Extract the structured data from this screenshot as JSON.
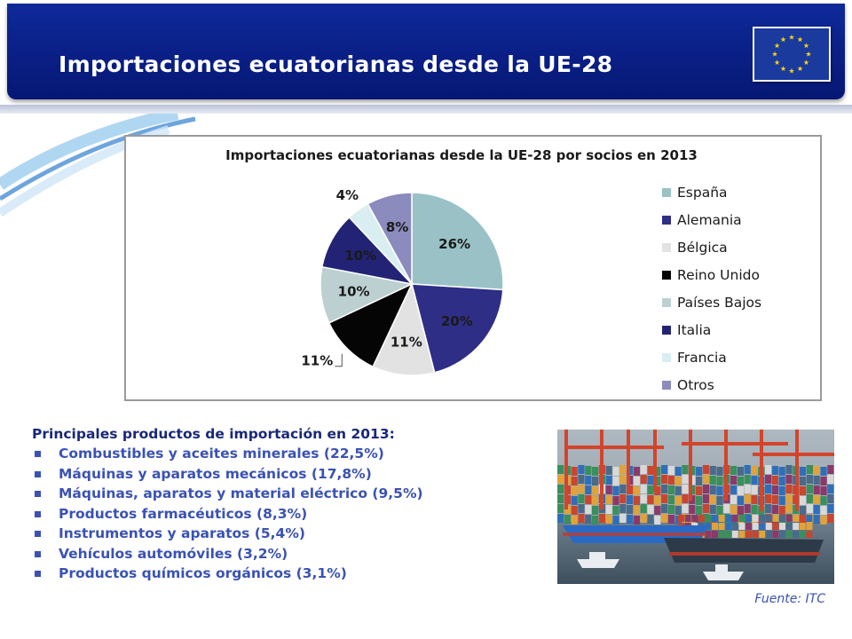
{
  "slide": {
    "title": "Importaciones ecuatorianas desde la UE-28",
    "flag_icon": "eu-flag-icon",
    "colors": {
      "banner": "#0a1f86",
      "accent_text": "#3a52b4",
      "heading_text": "#1a2878"
    }
  },
  "chart_data": {
    "type": "pie",
    "title": "Importaciones ecuatorianas desde la UE-28 por socios en 2013",
    "legend_position": "right",
    "categories": [
      "España",
      "Alemania",
      "Bélgica",
      "Reino Unido",
      "Países Bajos",
      "Italia",
      "Francia",
      "Otros"
    ],
    "values": [
      26,
      20,
      11,
      11,
      10,
      10,
      4,
      8
    ],
    "labels": [
      "26%",
      "20%",
      "11%",
      "11%",
      "10%",
      "10%",
      "4%",
      "8%"
    ],
    "colors": [
      "#9ac2c6",
      "#2e2e86",
      "#e2e2e2",
      "#050505",
      "#bcd0d1",
      "#232376",
      "#d9eef1",
      "#8b8bbd"
    ]
  },
  "products": {
    "heading": "Principales productos de importación en 2013:",
    "items": [
      "Combustibles y aceites minerales (22,5%)",
      "Máquinas y aparatos mecánicos (17,8%)",
      "Máquinas, aparatos y material eléctrico (9,5%)",
      "Productos farmacéuticos (8,3%)",
      "Instrumentos y aparatos (5,4%)",
      "Vehículos automóviles (3,2%)",
      "Productos químicos orgánicos (3,1%)"
    ]
  },
  "photo": {
    "icon": "container-port-photo"
  },
  "source": "Fuente: ITC"
}
